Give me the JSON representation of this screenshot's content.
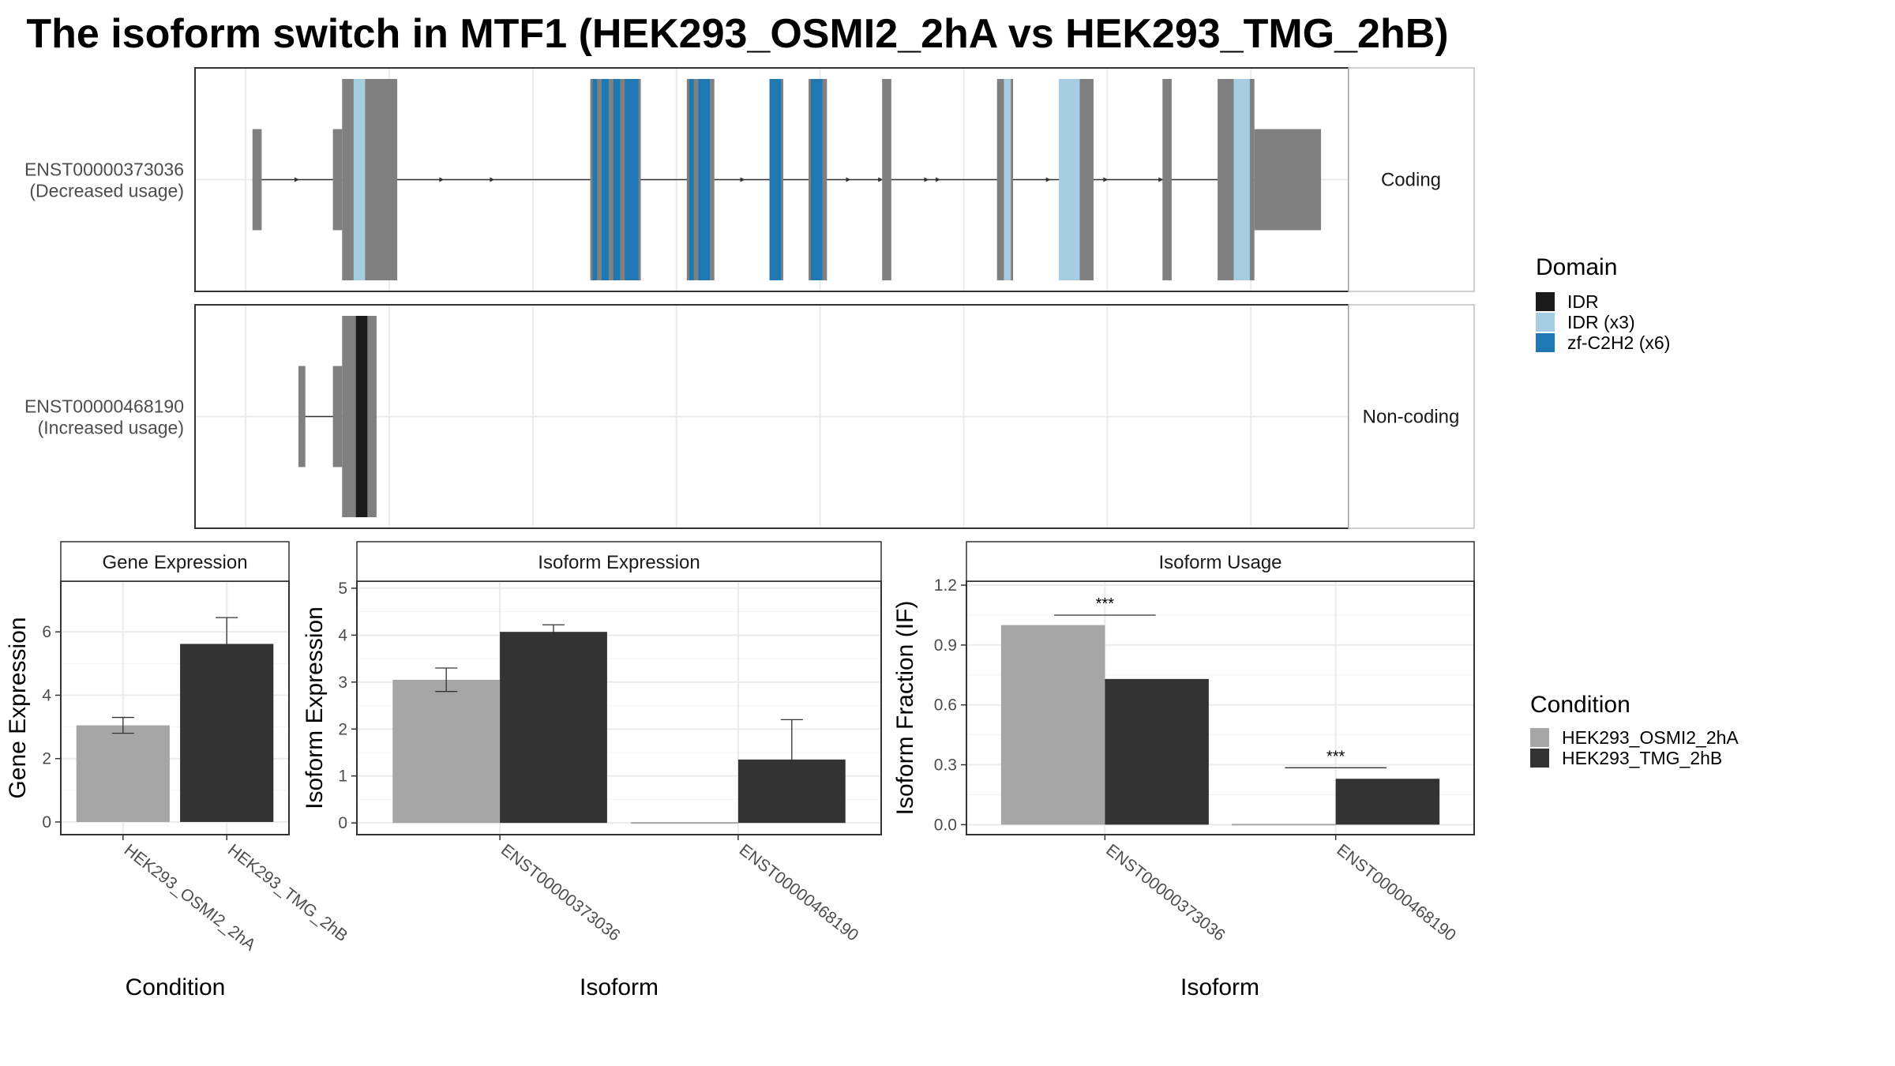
{
  "title": "The isoform switch in MTF1 (HEK293_OSMI2_2hA vs HEK293_TMG_2hB)",
  "colors": {
    "exon": "#808080",
    "idr": "#1a1a1a",
    "idr_x3": "#a6cee3",
    "zf": "#1f78b4",
    "cond_a": "#a6a6a6",
    "cond_b": "#333333",
    "grid": "#ebebeb",
    "panel_border": "#333333",
    "strip_border": "#bfbfbf",
    "strip_fill": "#ffffff"
  },
  "structure": {
    "isoforms": [
      {
        "id": "ENST00000373036",
        "usage": "(Decreased usage)",
        "strip": "Coding",
        "exons": [
          {
            "s": 3,
            "e": 7,
            "kind": "utr"
          },
          {
            "s": 38,
            "e": 42,
            "kind": "utr"
          },
          {
            "s": 42,
            "e": 66,
            "kind": "cds"
          },
          {
            "s": 150,
            "e": 172,
            "kind": "cds"
          },
          {
            "s": 192,
            "e": 204,
            "kind": "cds"
          },
          {
            "s": 228,
            "e": 234,
            "kind": "cds"
          },
          {
            "s": 245,
            "e": 253,
            "kind": "cds"
          },
          {
            "s": 277,
            "e": 281,
            "kind": "cds"
          },
          {
            "s": 327,
            "e": 334,
            "kind": "cds"
          },
          {
            "s": 354,
            "e": 369,
            "kind": "cds"
          },
          {
            "s": 399,
            "e": 403,
            "kind": "cds"
          },
          {
            "s": 423,
            "e": 439,
            "kind": "cds"
          },
          {
            "s": 439,
            "e": 468,
            "kind": "utr"
          }
        ],
        "domains": [
          {
            "s": 47,
            "e": 52,
            "domain": "IDR (x3)"
          },
          {
            "s": 151,
            "e": 153,
            "domain": "zf-C2H2 (x6)"
          },
          {
            "s": 155,
            "e": 158,
            "domain": "zf-C2H2 (x6)"
          },
          {
            "s": 160,
            "e": 163,
            "domain": "zf-C2H2 (x6)"
          },
          {
            "s": 165,
            "e": 171,
            "domain": "zf-C2H2 (x6)"
          },
          {
            "s": 193,
            "e": 195,
            "domain": "zf-C2H2 (x6)"
          },
          {
            "s": 197,
            "e": 202,
            "domain": "zf-C2H2 (x6)"
          },
          {
            "s": 228,
            "e": 233,
            "domain": "zf-C2H2 (x6)"
          },
          {
            "s": 246,
            "e": 251,
            "domain": "zf-C2H2 (x6)"
          },
          {
            "s": 330,
            "e": 333,
            "domain": "IDR (x3)"
          },
          {
            "s": 354,
            "e": 363,
            "domain": "IDR (x3)"
          },
          {
            "s": 430,
            "e": 437,
            "domain": "IDR (x3)"
          }
        ],
        "arrows": [
          23,
          42,
          86,
          108,
          217,
          232,
          263,
          277,
          297,
          302,
          350,
          375,
          399
        ]
      },
      {
        "id": "ENST00000468190",
        "usage": "(Increased usage)",
        "strip": "Non-coding",
        "exons": [
          {
            "s": 23,
            "e": 26,
            "kind": "utr"
          },
          {
            "s": 38,
            "e": 42,
            "kind": "utr"
          },
          {
            "s": 42,
            "e": 57,
            "kind": "cds"
          }
        ],
        "domains": [
          {
            "s": 48,
            "e": 53,
            "domain": "IDR"
          }
        ],
        "arrows": []
      }
    ],
    "gridlines": [
      0,
      62.5,
      125,
      187.5,
      250,
      312.5,
      375,
      437.5
    ],
    "xrange": [
      -22,
      480
    ]
  },
  "legend_domain": {
    "title": "Domain",
    "items": [
      {
        "label": "IDR",
        "color": "#1a1a1a"
      },
      {
        "label": "IDR (x3)",
        "color": "#a6cee3"
      },
      {
        "label": "zf-C2H2 (x6)",
        "color": "#1f78b4"
      }
    ]
  },
  "legend_condition": {
    "title": "Condition",
    "items": [
      {
        "label": "HEK293_OSMI2_2hA",
        "color": "#a6a6a6"
      },
      {
        "label": "HEK293_TMG_2hB",
        "color": "#333333"
      }
    ]
  },
  "chart_data": [
    {
      "type": "bar",
      "strip": "Gene Expression",
      "xlabel": "Condition",
      "ylabel": "Gene Expression",
      "ylim": [
        -0.4,
        7.6
      ],
      "yticks": [
        "0",
        "2",
        "4",
        "6"
      ],
      "categories": [
        "HEK293_OSMI2_2hA",
        "HEK293_TMG_2hB"
      ],
      "values": [
        3.05,
        5.62
      ],
      "err_low": [
        2.8,
        4.8
      ],
      "err_high": [
        3.3,
        6.45
      ],
      "colors": [
        "#a6a6a6",
        "#333333"
      ]
    },
    {
      "type": "bar",
      "strip": "Isoform Expression",
      "xlabel": "Isoform",
      "ylabel": "Isoform Expression",
      "ylim": [
        -0.25,
        5.15
      ],
      "yticks": [
        "0",
        "1",
        "2",
        "3",
        "4",
        "5"
      ],
      "categories": [
        "ENST00000373036",
        "ENST00000468190"
      ],
      "series": [
        {
          "name": "HEK293_OSMI2_2hA",
          "values": [
            3.05,
            0.0
          ],
          "err_low": [
            2.8,
            0.0
          ],
          "err_high": [
            3.3,
            0.0
          ]
        },
        {
          "name": "HEK293_TMG_2hB",
          "values": [
            4.07,
            1.35
          ],
          "err_low": [
            3.95,
            0.52
          ],
          "err_high": [
            4.22,
            2.2
          ]
        }
      ]
    },
    {
      "type": "bar",
      "strip": "Isoform Usage",
      "xlabel": "Isoform",
      "ylabel": "Isoform Fraction (IF)",
      "ylim": [
        -0.05,
        1.22
      ],
      "yticks": [
        "0.0",
        "0.3",
        "0.6",
        "0.9",
        "1.2"
      ],
      "categories": [
        "ENST00000373036",
        "ENST00000468190"
      ],
      "series": [
        {
          "name": "HEK293_OSMI2_2hA",
          "values": [
            1.0,
            0.0
          ]
        },
        {
          "name": "HEK293_TMG_2hB",
          "values": [
            0.73,
            0.23
          ]
        }
      ],
      "significance": [
        {
          "label": "***",
          "y": 1.05
        },
        {
          "label": "***",
          "y": 0.285
        }
      ]
    }
  ]
}
